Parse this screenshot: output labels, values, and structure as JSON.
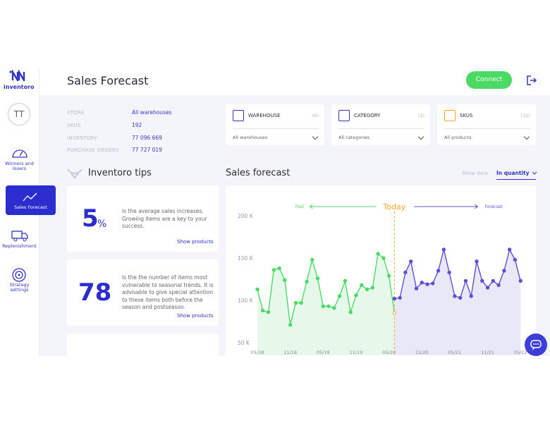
{
  "sidebar": {
    "logo": "inventoro",
    "avatar": "TT",
    "nav": [
      "Winners and losers",
      "Sales Forecast",
      "Replenishment",
      "Strategy settings"
    ]
  },
  "header": {
    "title": "Sales Forecast",
    "button": "Connect"
  },
  "summary": {
    "rows": [
      [
        "STORE",
        "All warehouses"
      ],
      [
        "SKUS",
        "192"
      ],
      [
        "INVENTORY",
        "77 096 669"
      ],
      [
        "PURCHASE ORDERS",
        "77 727 019"
      ]
    ]
  },
  "filters": [
    {
      "label": "WAREHOUSE",
      "count": "(6)",
      "value": "All warehouses"
    },
    {
      "label": "CATEGORY",
      "count": "(3)",
      "value": "All categories"
    },
    {
      "label": "SKUS",
      "count": "(32)",
      "value": "All products"
    }
  ],
  "tips": {
    "title": "Inventoro tips",
    "cards": [
      {
        "value": "5",
        "unit": "%",
        "text": "Is the average sales increases. Growing items are a key to your success.",
        "link": "Show products"
      },
      {
        "value": "78",
        "text": "Is the the number of items most vulnerable to seasonal trends. It is advisable to give special attention to these items both before the season and postseason.",
        "link": "Show products"
      }
    ]
  },
  "forecast_controls": {
    "label": "Show data",
    "value": "In quantity"
  },
  "chart_data": {
    "type": "line",
    "title": "Sales forecast",
    "x": [
      0,
      1,
      2,
      3,
      4,
      5,
      6,
      7,
      8,
      9,
      10,
      11,
      12,
      13,
      14,
      15,
      16,
      17,
      18,
      19,
      20,
      21,
      22,
      23,
      24,
      25,
      26,
      27,
      28,
      29,
      30,
      31,
      32,
      33,
      34,
      35,
      36,
      37,
      38,
      39,
      40,
      41,
      42,
      43,
      44,
      45,
      46,
      47,
      48
    ],
    "series": [
      {
        "name": "Past",
        "color": "#4cd964",
        "fill": "#e6f8ea",
        "values": [
          113,
          88,
          86,
          136,
          138,
          124,
          71,
          97,
          97,
          122,
          148,
          126,
          93,
          93,
          91,
          105,
          123,
          86,
          106,
          118,
          113,
          115,
          155,
          150,
          129,
          85,
          null,
          null,
          null,
          null,
          null,
          null,
          null,
          null,
          null,
          null,
          null,
          null,
          null,
          null,
          null,
          null,
          null,
          null,
          null,
          null,
          null,
          null,
          null
        ]
      },
      {
        "name": "Forecast",
        "color": "#5b50d6",
        "fill": "#e9e8f8",
        "values": [
          null,
          null,
          null,
          null,
          null,
          null,
          null,
          null,
          null,
          null,
          null,
          null,
          null,
          null,
          null,
          null,
          null,
          null,
          null,
          null,
          null,
          null,
          null,
          null,
          null,
          102,
          103,
          133,
          146,
          114,
          121,
          119,
          120,
          135,
          160,
          133,
          105,
          103,
          123,
          105,
          146,
          123,
          115,
          123,
          118,
          135,
          160,
          148,
          123
        ]
      }
    ],
    "annotations": [
      {
        "text": "Today",
        "x": 25,
        "color": "#f5a623"
      }
    ],
    "xlim": [
      -4.5,
      49
    ],
    "xticks": [
      {
        "value": 0,
        "label": "05/18"
      },
      {
        "value": 6,
        "label": "11/18"
      },
      {
        "value": 12,
        "label": "05/19"
      },
      {
        "value": 18,
        "label": "11/19"
      },
      {
        "value": 24,
        "label": "05/20"
      },
      {
        "value": 30,
        "label": "11/20"
      },
      {
        "value": 36,
        "label": "05/21"
      },
      {
        "value": 42,
        "label": "11/21"
      },
      {
        "value": 48,
        "label": "05/22"
      }
    ],
    "ylim": [
      35,
      210
    ],
    "yticks": [
      {
        "value": 50,
        "label": "50 K"
      },
      {
        "value": 100,
        "label": "100 K"
      },
      {
        "value": 150,
        "label": "150 K"
      },
      {
        "value": 200,
        "label": "200 K"
      }
    ],
    "grid": false
  }
}
